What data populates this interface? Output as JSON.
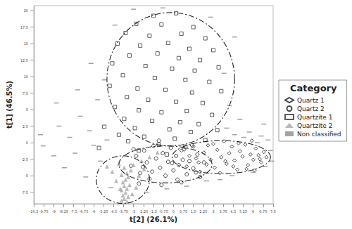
{
  "chart_data": {
    "type": "scatter",
    "x_label": "t[2] (26.1%)",
    "y_label": "t[1] (46.5%)",
    "legend_title": "Category",
    "legend": "right",
    "grid": false,
    "xlim": [
      -10.5,
      7.5
    ],
    "xticks": [
      -10.5,
      -9.75,
      -9,
      -8.25,
      -7.5,
      -6.75,
      -6,
      -5.25,
      -4.5,
      -3.75,
      -3,
      -2.25,
      -1.5,
      -0.75,
      0,
      0.75,
      1.5,
      2.25,
      3,
      3.75,
      4.5,
      5.25,
      6,
      6.75,
      7.5
    ],
    "ylim": [
      -9.25,
      20.75
    ],
    "yticks": [
      -7.5,
      -5,
      -2.5,
      0,
      2.5,
      5,
      7.5,
      10,
      12.5,
      15,
      17.5,
      20
    ],
    "line_style": "dashdot",
    "ellipses": [
      {
        "cx": -0.2,
        "cy": 9.6,
        "rx": 4.8,
        "ry": 10.1
      },
      {
        "cx": 3.6,
        "cy": -2.2,
        "rx": 3.7,
        "ry": 2.5
      },
      {
        "cx": -0.6,
        "cy": -3.3,
        "rx": 3.5,
        "ry": 2.8
      },
      {
        "cx": -3.8,
        "cy": -5.6,
        "rx": 2.0,
        "ry": 3.6
      }
    ],
    "series": [
      {
        "name": "Quartz 1",
        "color": "#1a1a1a",
        "marker": "diamond",
        "values": [
          [
            0.6,
            -1.2
          ],
          [
            1.2,
            -2.0
          ],
          [
            1.5,
            -0.6
          ],
          [
            1.9,
            -3.0
          ],
          [
            2.3,
            -1.5
          ],
          [
            2.6,
            -0.4
          ],
          [
            2.8,
            -2.6
          ],
          [
            3.1,
            -3.8
          ],
          [
            3.3,
            -1.1
          ],
          [
            3.6,
            -2.2
          ],
          [
            3.8,
            0.2
          ],
          [
            4.0,
            -3.2
          ],
          [
            4.2,
            -1.6
          ],
          [
            4.4,
            -0.6
          ],
          [
            4.6,
            -2.7
          ],
          [
            4.8,
            -4.1
          ],
          [
            5.0,
            -1.3
          ],
          [
            5.2,
            -2.1
          ],
          [
            5.4,
            -0.3
          ],
          [
            5.6,
            -3.4
          ],
          [
            5.8,
            -1.8
          ],
          [
            6.0,
            -2.6
          ],
          [
            6.2,
            -0.9
          ],
          [
            6.4,
            -1.9
          ],
          [
            6.6,
            -3.0
          ],
          [
            6.8,
            -1.4
          ],
          [
            7.0,
            -2.2
          ],
          [
            1.0,
            -3.6
          ],
          [
            2.0,
            -4.4
          ],
          [
            3.0,
            -0.2
          ],
          [
            3.5,
            -4.6
          ],
          [
            4.5,
            -3.6
          ],
          [
            5.5,
            -4.0
          ],
          [
            6.1,
            -4.2
          ],
          [
            1.7,
            -2.4
          ],
          [
            2.5,
            -3.3
          ],
          [
            3.9,
            -2.8
          ],
          [
            4.9,
            -0.1
          ],
          [
            5.9,
            0.3
          ],
          [
            6.5,
            -2.5
          ]
        ]
      },
      {
        "name": "Quartz 2",
        "color": "#1a1a1a",
        "marker": "circle",
        "values": [
          [
            -3.2,
            -3.5
          ],
          [
            -2.8,
            -2.0
          ],
          [
            -2.5,
            -4.6
          ],
          [
            -2.2,
            -1.2
          ],
          [
            -2.0,
            -3.0
          ],
          [
            -1.8,
            -5.5
          ],
          [
            -1.5,
            -0.5
          ],
          [
            -1.3,
            -2.4
          ],
          [
            -1.0,
            -3.8
          ],
          [
            -0.8,
            -1.6
          ],
          [
            -0.6,
            -5.0
          ],
          [
            -0.4,
            -2.9
          ],
          [
            -0.2,
            -0.8
          ],
          [
            0.0,
            -4.2
          ],
          [
            0.2,
            -2.0
          ],
          [
            0.4,
            -3.4
          ],
          [
            0.6,
            -6.0
          ],
          [
            0.8,
            -1.0
          ],
          [
            1.0,
            -4.8
          ],
          [
            1.2,
            -2.8
          ],
          [
            1.5,
            -3.9
          ],
          [
            1.8,
            -1.8
          ],
          [
            2.0,
            -5.2
          ],
          [
            2.3,
            -3.0
          ],
          [
            -2.6,
            -6.2
          ],
          [
            -1.6,
            -4.4
          ],
          [
            -0.9,
            -6.4
          ],
          [
            0.3,
            -5.6
          ],
          [
            1.4,
            -0.4
          ],
          [
            -3.0,
            -1.0
          ],
          [
            -1.1,
            0.3
          ],
          [
            0.7,
            -2.6
          ],
          [
            1.7,
            -4.5
          ],
          [
            -0.1,
            -3.1
          ],
          [
            -2.3,
            -3.7
          ]
        ]
      },
      {
        "name": "Quartzite 1",
        "color": "#333333",
        "marker": "square",
        "values": [
          [
            -1.5,
            19.2
          ],
          [
            0.2,
            19.6
          ],
          [
            -2.8,
            18.0
          ],
          [
            -0.9,
            17.9
          ],
          [
            1.5,
            17.5
          ],
          [
            -3.6,
            16.6
          ],
          [
            -1.8,
            16.2
          ],
          [
            0.6,
            16.5
          ],
          [
            2.4,
            15.8
          ],
          [
            -4.2,
            15.0
          ],
          [
            -2.5,
            14.7
          ],
          [
            -0.4,
            15.1
          ],
          [
            1.2,
            14.2
          ],
          [
            3.0,
            14.0
          ],
          [
            -3.3,
            13.2
          ],
          [
            -1.2,
            13.5
          ],
          [
            0.4,
            12.8
          ],
          [
            2.0,
            12.5
          ],
          [
            -4.6,
            12.0
          ],
          [
            -2.1,
            11.6
          ],
          [
            -0.1,
            11.2
          ],
          [
            1.6,
            10.9
          ],
          [
            3.4,
            11.4
          ],
          [
            -3.8,
            10.2
          ],
          [
            -1.4,
            9.8
          ],
          [
            0.9,
            9.5
          ],
          [
            2.7,
            9.2
          ],
          [
            -4.8,
            8.6
          ],
          [
            -2.7,
            8.2
          ],
          [
            -0.6,
            8.0
          ],
          [
            1.4,
            7.6
          ],
          [
            3.6,
            7.8
          ],
          [
            -3.5,
            6.9
          ],
          [
            -1.9,
            6.5
          ],
          [
            0.2,
            6.2
          ],
          [
            2.2,
            6.0
          ],
          [
            -4.4,
            5.4
          ],
          [
            -2.6,
            4.9
          ],
          [
            -0.9,
            4.6
          ],
          [
            1.0,
            4.8
          ],
          [
            2.9,
            4.2
          ],
          [
            -3.7,
            3.6
          ],
          [
            -1.6,
            3.3
          ],
          [
            0.5,
            3.1
          ],
          [
            1.9,
            2.8
          ],
          [
            -5.2,
            2.4
          ],
          [
            -2.9,
            2.2
          ],
          [
            -0.3,
            2.0
          ],
          [
            1.3,
            1.6
          ],
          [
            3.3,
            1.9
          ],
          [
            -4.1,
            1.2
          ],
          [
            -2.2,
            0.9
          ],
          [
            0.1,
            0.6
          ],
          [
            2.4,
            0.4
          ],
          [
            -3.4,
            0.2
          ],
          [
            -1.1,
            -0.3
          ],
          [
            0.9,
            -0.6
          ],
          [
            -5.6,
            -0.8
          ],
          [
            -2.6,
            -1.2
          ],
          [
            -0.5,
            -1.8
          ]
        ]
      },
      {
        "name": "Quartzite 2",
        "color": "#a6a6a6",
        "marker": "triangle",
        "values": [
          [
            -3.9,
            -8.8
          ],
          [
            -3.7,
            -8.5
          ],
          [
            -3.5,
            -8.9
          ],
          [
            -3.8,
            -8.0
          ],
          [
            -3.6,
            -7.6
          ],
          [
            -3.4,
            -8.2
          ],
          [
            -3.9,
            -7.2
          ],
          [
            -3.5,
            -7.0
          ],
          [
            -3.7,
            -6.6
          ],
          [
            -3.3,
            -6.4
          ],
          [
            -3.8,
            -6.0
          ],
          [
            -3.6,
            -5.6
          ],
          [
            -3.4,
            -5.2
          ],
          [
            -3.9,
            -4.9
          ],
          [
            -3.5,
            -4.6
          ],
          [
            -3.2,
            -4.2
          ],
          [
            -3.7,
            -3.8
          ],
          [
            -3.0,
            -3.4
          ],
          [
            -4.3,
            -5.8
          ],
          [
            -4.6,
            -4.4
          ],
          [
            -2.8,
            -6.8
          ],
          [
            -2.6,
            -5.0
          ],
          [
            -4.1,
            -3.2
          ],
          [
            -2.4,
            -2.8
          ],
          [
            -3.1,
            -7.8
          ],
          [
            -4.0,
            -7.0
          ],
          [
            -1.8,
            -2.2
          ],
          [
            -1.2,
            -1.5
          ],
          [
            -5.0,
            -3.6
          ],
          [
            -2.2,
            -4.0
          ]
        ]
      },
      {
        "name": "Non classified",
        "color": "#8c8c8c",
        "marker": "dash",
        "values": [
          [
            -9.8,
            -0.5
          ],
          [
            -9.0,
            -2.0
          ],
          [
            -8.6,
            2.5
          ],
          [
            -8.2,
            -3.8
          ],
          [
            -7.8,
            0.8
          ],
          [
            -7.4,
            -1.6
          ],
          [
            -7.0,
            4.0
          ],
          [
            -6.6,
            -5.2
          ],
          [
            -6.3,
            1.8
          ],
          [
            -6.0,
            -0.4
          ],
          [
            -5.7,
            6.5
          ],
          [
            -5.5,
            -2.8
          ],
          [
            -5.2,
            9.5
          ],
          [
            -5.0,
            0.4
          ],
          [
            -4.7,
            -6.8
          ],
          [
            -4.4,
            17.8
          ],
          [
            -6.2,
            12.0
          ],
          [
            -3.0,
            20.2
          ],
          [
            -7.2,
            8.0
          ],
          [
            -2.0,
            -7.5
          ],
          [
            -0.5,
            -7.0
          ],
          [
            1.0,
            -6.6
          ],
          [
            2.5,
            -5.8
          ],
          [
            3.5,
            -5.6
          ],
          [
            4.4,
            -5.0
          ],
          [
            4.0,
            2.2
          ],
          [
            4.6,
            1.2
          ],
          [
            5.0,
            3.5
          ],
          [
            5.3,
            0.8
          ],
          [
            5.7,
            1.6
          ],
          [
            6.0,
            -4.5
          ],
          [
            6.3,
            0.0
          ],
          [
            6.6,
            1.0
          ],
          [
            6.9,
            -3.6
          ],
          [
            7.1,
            0.4
          ],
          [
            7.3,
            -1.2
          ],
          [
            7.4,
            -2.8
          ],
          [
            4.2,
            5.6
          ],
          [
            3.8,
            10.5
          ],
          [
            4.6,
            16.0
          ],
          [
            -0.8,
            20.4
          ],
          [
            2.8,
            19.0
          ],
          [
            -8.8,
            6.0
          ],
          [
            -10.0,
            1.2
          ],
          [
            6.8,
            2.8
          ]
        ]
      }
    ]
  }
}
